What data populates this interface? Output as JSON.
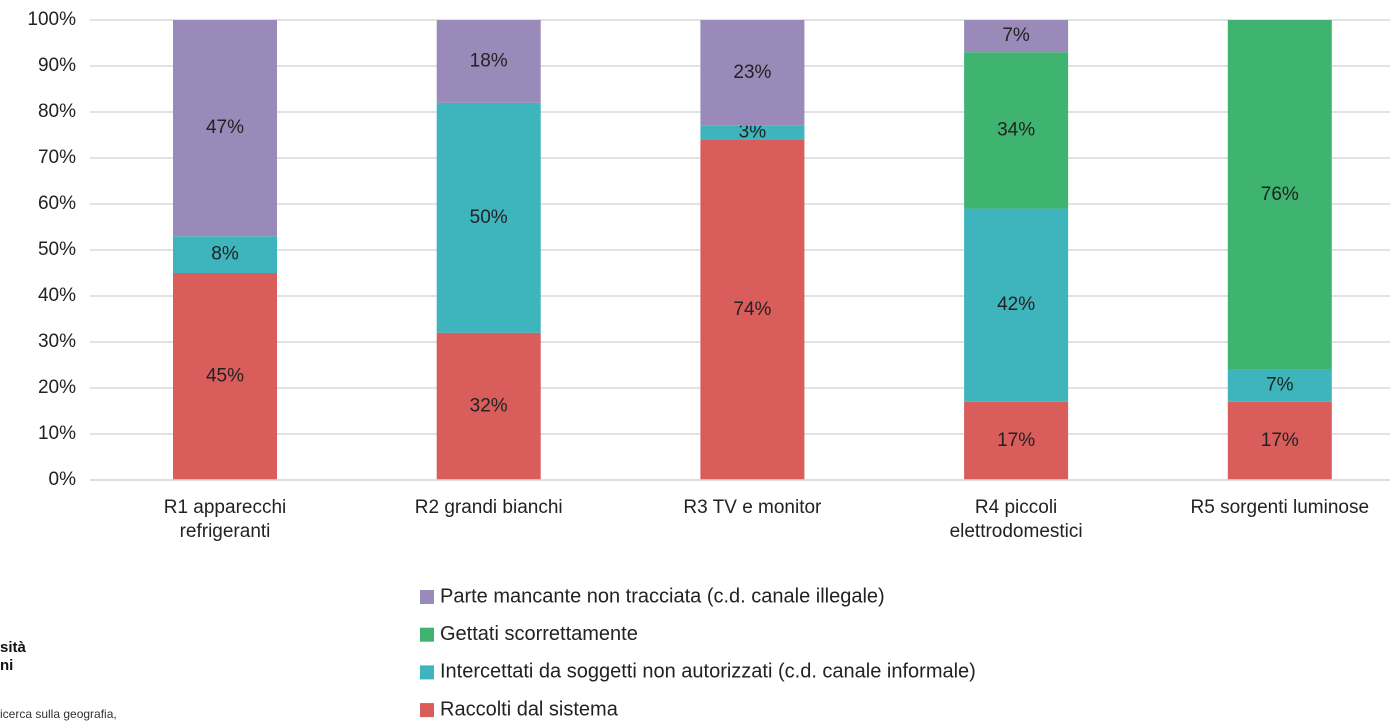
{
  "chart_data": {
    "type": "stacked_bar",
    "categories": [
      [
        "R1 apparecchi",
        "refrigeranti"
      ],
      [
        "R2 grandi bianchi"
      ],
      [
        "R3 TV e monitor"
      ],
      [
        "R4 piccoli",
        "elettrodomestici"
      ],
      [
        "R5 sorgenti luminose"
      ]
    ],
    "series": [
      {
        "name": "Raccolti dal sistema",
        "color": "#d95d5b",
        "values": [
          45,
          32,
          74,
          17,
          17
        ],
        "value_labels": [
          "45%",
          "32%",
          "74%",
          "17%",
          "17%"
        ]
      },
      {
        "name": "Intercettati da soggetti non autorizzati (c.d. canale informale)",
        "color": "#3eb4bc",
        "values": [
          8,
          50,
          3,
          42,
          7
        ],
        "value_labels": [
          "8%",
          "50%",
          "3%",
          "42%",
          "7%"
        ]
      },
      {
        "name": "Gettati scorrettamente",
        "color": "#3fb370",
        "values": [
          null,
          null,
          null,
          34,
          76
        ],
        "value_labels": [
          null,
          null,
          null,
          "34%",
          "76%"
        ]
      },
      {
        "name": "Parte mancante non tracciata (c.d. canale illegale)",
        "color": "#9a8ab9",
        "values": [
          47,
          18,
          23,
          7,
          null
        ],
        "value_labels": [
          "47%",
          "18%",
          "23%",
          "7%",
          null
        ]
      }
    ],
    "ylim": [
      0,
      100
    ],
    "yticks": [
      {
        "value": 0,
        "label": "0%"
      },
      {
        "value": 10,
        "label": "10%"
      },
      {
        "value": 20,
        "label": "20%"
      },
      {
        "value": 30,
        "label": "30%"
      },
      {
        "value": 40,
        "label": "40%"
      },
      {
        "value": 50,
        "label": "50%"
      },
      {
        "value": 60,
        "label": "60%"
      },
      {
        "value": 70,
        "label": "70%"
      },
      {
        "value": 80,
        "label": "80%"
      },
      {
        "value": 90,
        "label": "90%"
      },
      {
        "value": 100,
        "label": "100%"
      }
    ],
    "grid": true,
    "legend": "bottom"
  },
  "footer": {
    "logo": [
      "sità",
      "ni"
    ],
    "note": "icerca sulla geografia,"
  }
}
